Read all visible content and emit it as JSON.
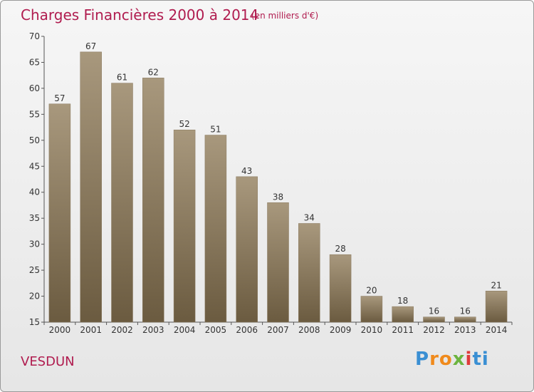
{
  "header": {
    "title": "Charges Financières 2000 à 2014",
    "unit": "(en milliers d'€)"
  },
  "footer": {
    "place": "VESDUN",
    "logo_letters": [
      "P",
      "r",
      "o",
      "x",
      "i",
      "ti"
    ]
  },
  "colors": {
    "accent": "#b01c4f",
    "bar_top": "#a8987d",
    "bar_bottom": "#6b5b40"
  },
  "chart_data": {
    "type": "bar",
    "categories": [
      "2000",
      "2001",
      "2002",
      "2003",
      "2004",
      "2005",
      "2006",
      "2007",
      "2008",
      "2009",
      "2010",
      "2011",
      "2012",
      "2013",
      "2014"
    ],
    "values": [
      57,
      67,
      61,
      62,
      52,
      51,
      43,
      38,
      34,
      28,
      20,
      18,
      16,
      16,
      21
    ],
    "ylim": [
      15,
      70
    ],
    "yticks": [
      15,
      20,
      25,
      30,
      35,
      40,
      45,
      50,
      55,
      60,
      65,
      70
    ],
    "grid": false
  }
}
